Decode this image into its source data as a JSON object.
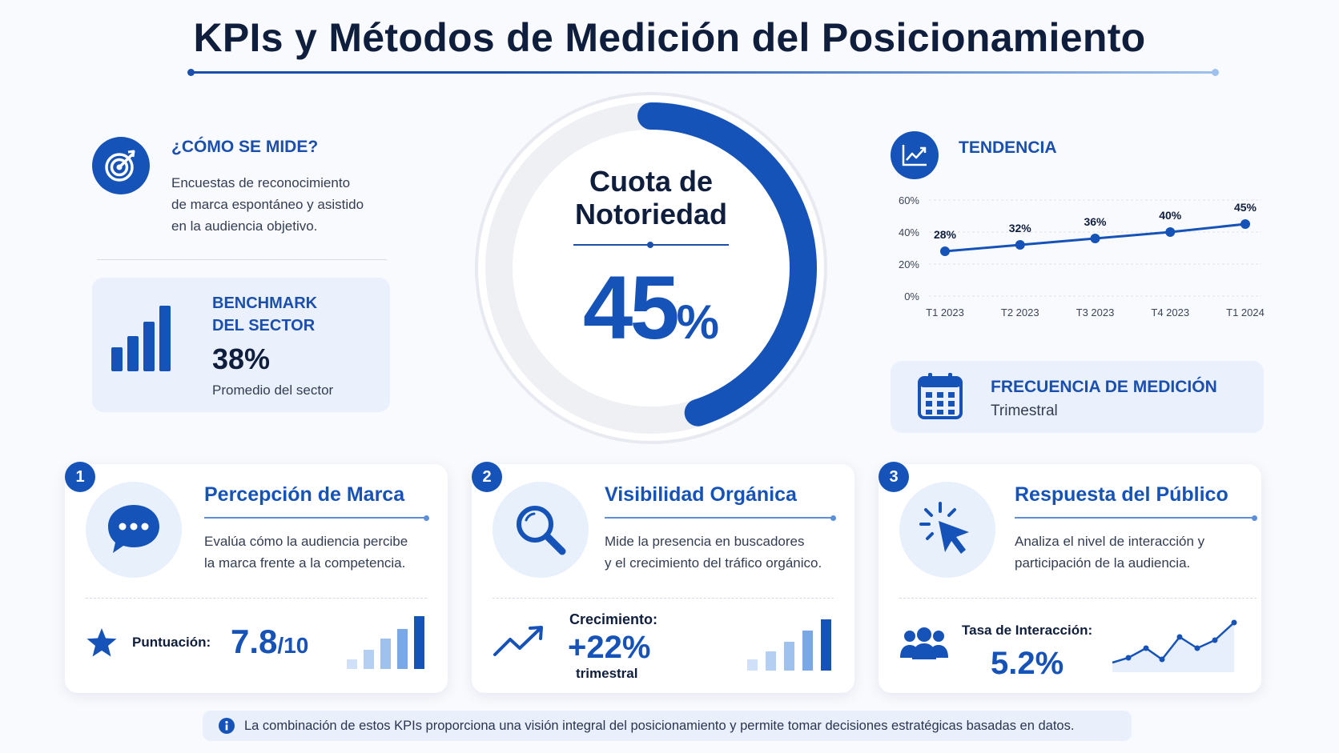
{
  "title": "KPIs y Métodos de Medición del Posicionamiento",
  "how": {
    "title": "¿CÓMO SE MIDE?",
    "lines": [
      "Encuestas de reconocimiento",
      "de marca espontáneo y asistido",
      "en la audiencia objetivo."
    ],
    "icon": "target-icon"
  },
  "benchmark": {
    "title_line1": "BENCHMARK",
    "title_line2": "DEL SECTOR",
    "value": "38%",
    "subtitle": "Promedio del sector",
    "icon": "bar-chart-icon"
  },
  "gauge": {
    "title_line1": "Cuota de",
    "title_line2": "Notoriedad",
    "value_num": "45",
    "value_pct": "%",
    "fraction": 0.45
  },
  "trend": {
    "title": "TENDENCIA",
    "icon": "line-chart-icon"
  },
  "chart_data": {
    "type": "line",
    "title": "TENDENCIA",
    "categories": [
      "T1 2023",
      "T2 2023",
      "T3 2023",
      "T4 2023",
      "T1 2024"
    ],
    "values": [
      28,
      32,
      36,
      40,
      45
    ],
    "data_labels": [
      "28%",
      "32%",
      "36%",
      "40%",
      "45%"
    ],
    "yticks": [
      0,
      20,
      40,
      60
    ],
    "ytick_labels": [
      "0%",
      "20%",
      "40%",
      "60%"
    ],
    "ylim": [
      0,
      60
    ],
    "grid": true,
    "xlabel": "",
    "ylabel": ""
  },
  "frequency": {
    "title": "FRECUENCIA DE MEDICIÓN",
    "value": "Trimestral",
    "icon": "calendar-icon"
  },
  "cards": [
    {
      "badge": "1",
      "title": "Percepción de Marca",
      "lines": [
        "Evalúa cómo la audiencia percibe",
        "la marca frente a la competencia."
      ],
      "icon": "chat-bubble-icon",
      "metric_label": "Puntuación:",
      "metric_value": "7.8",
      "metric_suffix": "/10",
      "metric_icon": "star-icon"
    },
    {
      "badge": "2",
      "title": "Visibilidad Orgánica",
      "lines": [
        "Mide la presencia en buscadores",
        "y el crecimiento del tráfico orgánico."
      ],
      "icon": "magnifier-icon",
      "metric_label": "Crecimiento:",
      "metric_value": "+22%",
      "metric_suffix": "trimestral",
      "metric_icon": "trend-up-icon"
    },
    {
      "badge": "3",
      "title": "Respuesta del Público",
      "lines": [
        "Analiza el nivel de interacción y",
        "participación de la audiencia."
      ],
      "icon": "cursor-click-icon",
      "metric_label": "Tasa de Interacción:",
      "metric_value": "5.2%",
      "metric_icon": "people-icon"
    }
  ],
  "footer": {
    "text": "La combinación de estos KPIs proporciona una visión integral del posicionamiento y permite tomar decisiones estratégicas basadas en datos.",
    "icon": "info-icon"
  }
}
